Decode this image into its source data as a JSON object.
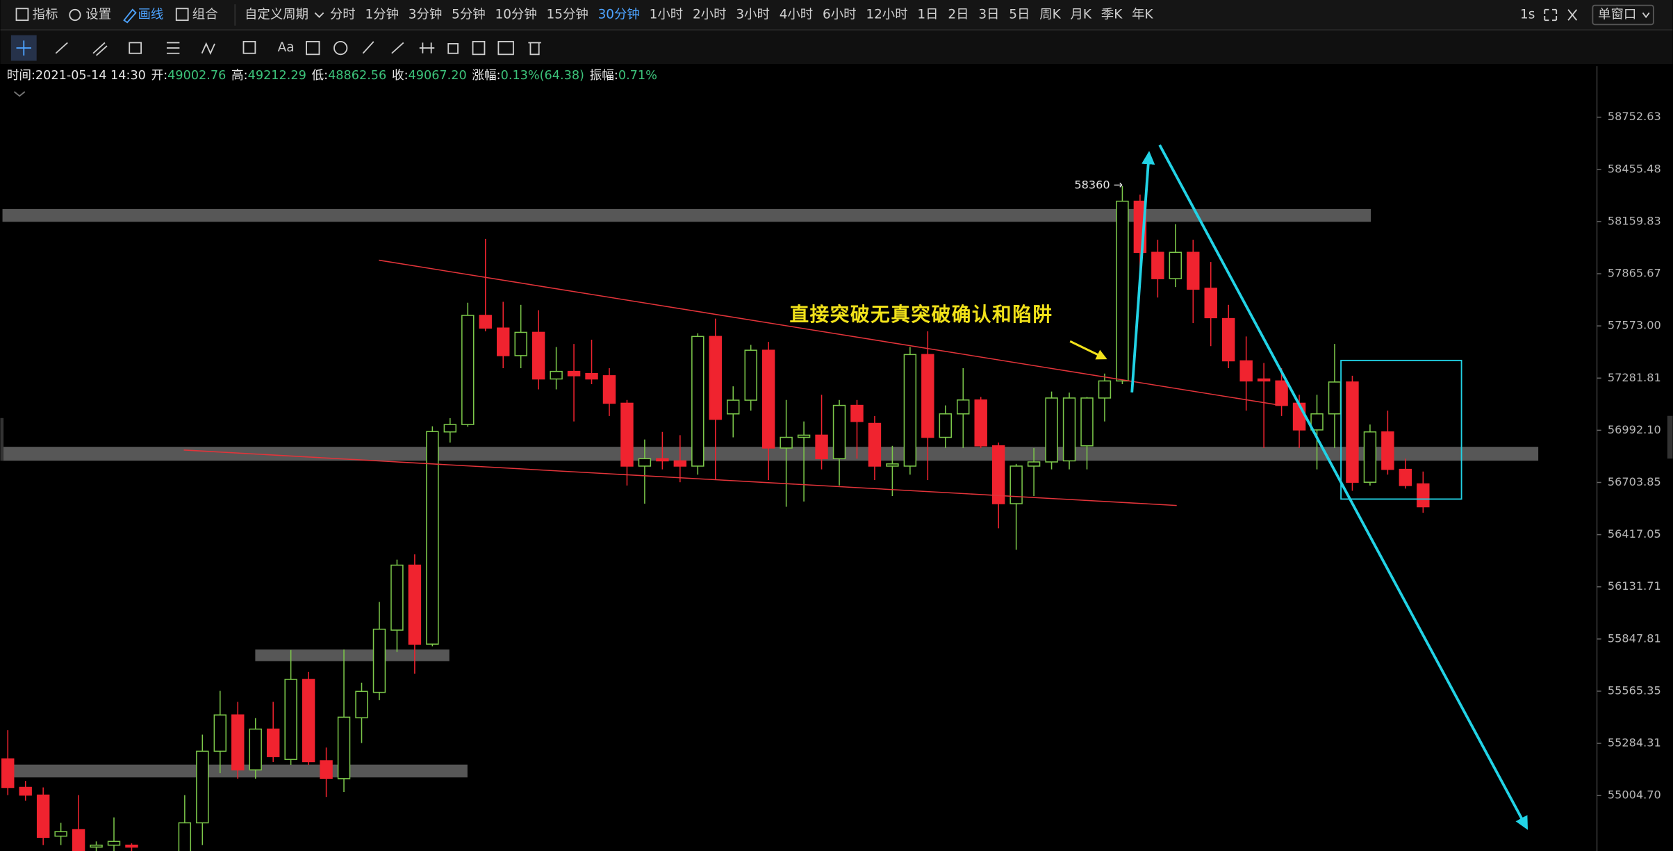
{
  "toolbar": {
    "left": [
      "指标",
      "设置",
      "画线",
      "组合"
    ],
    "active_left": 2,
    "period_menu": "自定义周期",
    "periods": [
      "分时",
      "1分钟",
      "3分钟",
      "5分钟",
      "10分钟",
      "15分钟",
      "30分钟",
      "1小时",
      "2小时",
      "3小时",
      "4小时",
      "6小时",
      "12小时",
      "1日",
      "2日",
      "3日",
      "5日",
      "周K",
      "月K",
      "季K",
      "年K"
    ],
    "active_period": 6,
    "right": [
      "1s",
      "单窗口"
    ],
    "tool_text": "Aa"
  },
  "info": [
    {
      "label": "时间:",
      "value": "2021-05-14 14:30"
    },
    {
      "label": "开:",
      "value": "49002.76"
    },
    {
      "label": "高:",
      "value": "49212.29"
    },
    {
      "label": "低:",
      "value": "48862.56"
    },
    {
      "label": "收:",
      "value": "49067.20"
    },
    {
      "label": "涨幅:",
      "value": "0.13%(64.38)"
    },
    {
      "label": "振幅:",
      "value": "0.71%"
    }
  ],
  "chart_data": {
    "type": "candlestick",
    "log_scale": true,
    "annotations": [
      "直接突破无真突破确认和陷阱",
      "58360 →"
    ],
    "up_color": "#7cc84a",
    "down_color": "#f0232f",
    "ylim": [
      54709,
      59045
    ],
    "yticks": [
      58752.63,
      58455.48,
      58159.83,
      57865.67,
      {
        "value": 57573,
        "label": "57573.00"
      },
      57281.81,
      {
        "value": 56992.1,
        "label": "56992.10"
      },
      56703.85,
      56417.05,
      56131.71,
      55847.81,
      55565.35,
      55284.31,
      {
        "value": 55004.7,
        "label": "55004.70"
      }
    ],
    "open": [
      55201,
      55048,
      55007,
      54788,
      54823,
      54730,
      54740,
      54740,
      54650,
      54680,
      54700,
      54859,
      55242,
      55437,
      55142,
      55361,
      55198,
      55629,
      55191,
      55095,
      55422,
      55559,
      55896,
      56250,
      55820,
      56983,
      57024,
      57632,
      57561,
      57407,
      57537,
      57277,
      57319,
      57307,
      57295,
      57142,
      56794,
      56835,
      56823,
      56794,
      57514,
      57083,
      57159,
      57437,
      56894,
      56953,
      56965,
      56835,
      57130,
      57030,
      56794,
      56794,
      57413,
      56953,
      57083,
      57160,
      56906,
      56587,
      56794,
      56817,
      56823,
      56906,
      57171,
      57266,
      58275,
      57986,
      57838,
      57986,
      57784,
      57614,
      57378,
      57277,
      57266,
      57142,
      56994,
      57083,
      57260,
      56705,
      56983,
      56776,
      56696
    ],
    "high": [
      55355,
      55083,
      55048,
      54859,
      55007,
      54760,
      54888,
      54750,
      54700,
      54700,
      55007,
      55331,
      55567,
      55508,
      55420,
      55508,
      55788,
      55670,
      55262,
      55791,
      55611,
      56049,
      56280,
      56309,
      57014,
      57059,
      57703,
      58062,
      57708,
      57691,
      57661,
      57455,
      57472,
      57496,
      57337,
      57160,
      56941,
      56983,
      56965,
      57532,
      57614,
      57236,
      57467,
      57484,
      57160,
      57041,
      57189,
      57160,
      57160,
      57071,
      56906,
      57455,
      57543,
      57130,
      57337,
      57177,
      56924,
      56806,
      56894,
      57207,
      57201,
      57177,
      57307,
      58360,
      58312,
      58057,
      58145,
      58057,
      57932,
      57691,
      57514,
      57366,
      57337,
      57189,
      57189,
      57472,
      57295,
      57024,
      57101,
      56835,
      56764
    ],
    "low": [
      55007,
      54977,
      54741,
      54741,
      54694,
      54700,
      54700,
      54700,
      54600,
      54620,
      54690,
      54741,
      55124,
      55095,
      55095,
      55184,
      55169,
      55169,
      54997,
      55024,
      55286,
      55517,
      55778,
      55660,
      55808,
      56924,
      57012,
      57543,
      57337,
      57337,
      57219,
      57219,
      57041,
      57248,
      57071,
      56687,
      56587,
      56776,
      56705,
      56747,
      56717,
      56953,
      57101,
      56717,
      56570,
      56599,
      56776,
      56687,
      56835,
      56717,
      56629,
      56747,
      56717,
      56894,
      56894,
      56894,
      56452,
      56334,
      56629,
      56776,
      56776,
      56776,
      57041,
      57248,
      57850,
      57732,
      57791,
      57589,
      57460,
      57337,
      57101,
      56894,
      57071,
      56894,
      56776,
      56894,
      56658,
      56687,
      56747,
      56670,
      56537
    ],
    "close": [
      55048,
      55007,
      54782,
      54812,
      54700,
      54740,
      54760,
      54730,
      54680,
      54660,
      54859,
      55242,
      55437,
      55142,
      55361,
      55213,
      55629,
      55186,
      55097,
      55425,
      55564,
      55901,
      56250,
      55820,
      56985,
      57024,
      57632,
      57561,
      57407,
      57537,
      57277,
      57319,
      57295,
      57277,
      57142,
      56794,
      56835,
      56823,
      56794,
      57514,
      57053,
      57159,
      57437,
      56894,
      56953,
      56965,
      56835,
      57130,
      57041,
      56794,
      56806,
      57413,
      56953,
      57083,
      57160,
      56906,
      56587,
      56794,
      56817,
      57171,
      57171,
      57171,
      57266,
      58275,
      57986,
      57838,
      57986,
      57779,
      57619,
      57378,
      57266,
      57266,
      57130,
      56994,
      57083,
      57260,
      56705,
      56983,
      56776,
      56687,
      56570
    ]
  }
}
